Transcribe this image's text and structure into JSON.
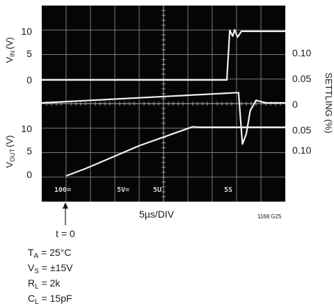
{
  "chart_data": {
    "type": "line",
    "title": "",
    "xlabel": "5µs/DIV",
    "x_divisions": 10,
    "x_units_per_div": "5µs",
    "left_axis_upper": {
      "label_main": "V",
      "label_sub": "IN",
      "label_unit": "(V)",
      "ticks": [
        "10",
        "5",
        "0"
      ]
    },
    "left_axis_lower": {
      "label_main": "V",
      "label_sub": "OUT",
      "label_unit": "(V)",
      "ticks": [
        "10",
        "5",
        "0"
      ]
    },
    "right_axis": {
      "label": "SETTLING (%)",
      "ticks": [
        "0.10",
        "0.05",
        "0",
        "0.05",
        "0.10"
      ]
    },
    "series": [
      {
        "name": "",
        "role": "input step",
        "x_us": [
          0,
          38,
          38.6,
          39.2,
          39.6,
          40.2,
          41,
          50
        ],
        "y": [
          0,
          0,
          10.2,
          9.0,
          10.3,
          8.8,
          10,
          10
        ]
      },
      {
        "name": "",
        "role": "settling error",
        "x_us": [
          0,
          40.4,
          41.2,
          42,
          42.8,
          44,
          46,
          50
        ],
        "y": [
          0,
          0.02,
          -0.08,
          -0.06,
          -0.015,
          0.005,
          0,
          0
        ]
      },
      {
        "name": "",
        "role": "output ramp",
        "x_us": [
          5,
          9,
          20,
          31,
          32,
          50
        ],
        "y": [
          0,
          1.5,
          6.2,
          10.1,
          10,
          10
        ]
      }
    ],
    "screen_text": [
      "100=",
      "5V=",
      "5U",
      "5S"
    ],
    "marker_label": "t = 0",
    "figure_id": "1168 G25",
    "conditions": [
      {
        "main": "T",
        "sub": "A",
        "rest": " = 25°C"
      },
      {
        "main": "V",
        "sub": "S",
        "rest": " = ±15V"
      },
      {
        "main": "R",
        "sub": "L",
        "rest": " = 2k"
      },
      {
        "main": "C",
        "sub": "L",
        "rest": " = 15pF"
      }
    ]
  }
}
